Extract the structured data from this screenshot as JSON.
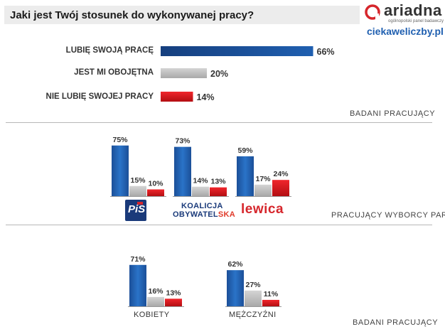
{
  "header": {
    "title": "Jaki jest Twój stosunek do wykonywanej pracy?",
    "logo_text": "ariadna",
    "logo_tagline": "ogólnopolski panel badawczy",
    "website": "ciekaweliczby.pl"
  },
  "sections": {
    "overall": "BADANI PRACUJĄCY",
    "parties": "PRACUJĄCY WYBORCY PARTII",
    "gender": "BADANI PRACUJĄCY"
  },
  "parties": {
    "pis": "PiS",
    "ko_line1": "KOALICJA",
    "ko_line2a": "OBYWATEL",
    "ko_line2b": "SKA",
    "lewica": "lewica"
  },
  "colors": {
    "blue": "#1f5fb0",
    "gray": "#bdbdbd",
    "red": "#e0161c"
  },
  "chart_data": [
    {
      "type": "bar",
      "orientation": "horizontal",
      "categories": [
        "LUBIĘ SWOJĄ PRACĘ",
        "JEST MI OBOJĘTNA",
        "NIE LUBIĘ SWOJEJ PRACY"
      ],
      "values": [
        66,
        20,
        14
      ],
      "value_labels": [
        "66%",
        "20%",
        "14%"
      ],
      "unit": "%",
      "xlim": [
        0,
        100
      ]
    },
    {
      "type": "bar",
      "categories": [
        "PiS",
        "KOALICJA OBYWATELSKA",
        "lewica"
      ],
      "series": [
        {
          "name": "LUBIĘ SWOJĄ PRACĘ",
          "values": [
            75,
            73,
            59
          ],
          "labels": [
            "75%",
            "73%",
            "59%"
          ]
        },
        {
          "name": "JEST MI OBOJĘTNA",
          "values": [
            15,
            14,
            17
          ],
          "labels": [
            "15%",
            "14%",
            "17%"
          ]
        },
        {
          "name": "NIE LUBIĘ SWOJEJ PRACY",
          "values": [
            10,
            13,
            24
          ],
          "labels": [
            "10%",
            "13%",
            "24%"
          ]
        }
      ],
      "unit": "%",
      "ylim": [
        0,
        100
      ]
    },
    {
      "type": "bar",
      "categories": [
        "KOBIETY",
        "MĘŻCZYŹNI"
      ],
      "series": [
        {
          "name": "LUBIĘ SWOJĄ PRACĘ",
          "values": [
            71,
            62
          ],
          "labels": [
            "71%",
            "62%"
          ]
        },
        {
          "name": "JEST MI OBOJĘTNA",
          "values": [
            16,
            27
          ],
          "labels": [
            "16%",
            "27%"
          ]
        },
        {
          "name": "NIE LUBIĘ SWOJEJ PRACY",
          "values": [
            13,
            11
          ],
          "labels": [
            "13%",
            "11%"
          ]
        }
      ],
      "unit": "%",
      "ylim": [
        0,
        100
      ]
    }
  ]
}
